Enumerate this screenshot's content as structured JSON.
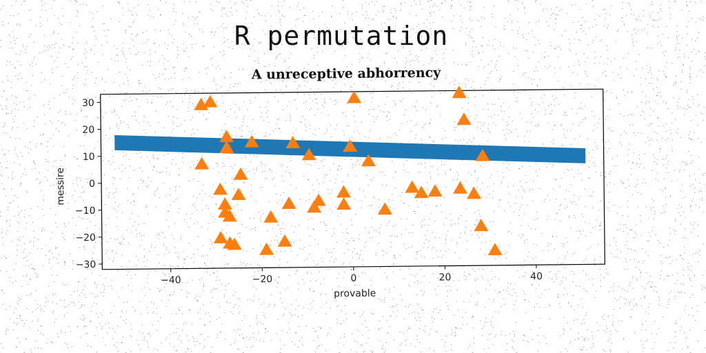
{
  "figure_title": "R permutation",
  "chart_data": {
    "type": "scatter",
    "title": "A unreceptive abhorrency",
    "xlabel": "provable",
    "ylabel": "messire",
    "xlim": [
      -55,
      55
    ],
    "ylim": [
      -32,
      33
    ],
    "xticks": [
      -40,
      -20,
      0,
      20,
      40
    ],
    "yticks": [
      -30,
      -20,
      -10,
      0,
      10,
      20,
      30
    ],
    "grid": false,
    "series": [
      {
        "kind": "band",
        "color": "#1f77b4",
        "x": [
          -52,
          51
        ],
        "y": [
          15,
          8.3
        ],
        "halfwidth": 2.8
      },
      {
        "kind": "points",
        "marker": "triangle",
        "color": "#ff7f0e",
        "points": [
          [
            -33,
            28.5
          ],
          [
            -31,
            29.5
          ],
          [
            -27.5,
            16.5
          ],
          [
            -27.5,
            12.5
          ],
          [
            -22,
            14.5
          ],
          [
            -13,
            14
          ],
          [
            -9.5,
            9.5
          ],
          [
            -33,
            6.5
          ],
          [
            -24.5,
            2.5
          ],
          [
            -29,
            -3
          ],
          [
            -25,
            -5
          ],
          [
            -28,
            -8.5
          ],
          [
            -28,
            -11.5
          ],
          [
            -27,
            -13
          ],
          [
            -29,
            -21
          ],
          [
            -27,
            -23
          ],
          [
            -26,
            -23.5
          ],
          [
            -19,
            -25.5
          ],
          [
            -18,
            -13.5
          ],
          [
            -15,
            -22.5
          ],
          [
            -14,
            -8.5
          ],
          [
            -7.5,
            -7.5
          ],
          [
            -8.5,
            -10
          ],
          [
            -2,
            -4.5
          ],
          [
            -2,
            -9
          ],
          [
            0.5,
            30.5
          ],
          [
            -0.5,
            12.5
          ],
          [
            3.5,
            7
          ],
          [
            7,
            -11
          ],
          [
            13,
            -3
          ],
          [
            15,
            -5
          ],
          [
            18,
            -4.5
          ],
          [
            23.5,
            -3.5
          ],
          [
            26.5,
            -5.5
          ],
          [
            23.5,
            32
          ],
          [
            24.5,
            22
          ],
          [
            28.5,
            8.5
          ],
          [
            28,
            -17.5
          ],
          [
            31,
            -26.5
          ]
        ]
      }
    ]
  }
}
